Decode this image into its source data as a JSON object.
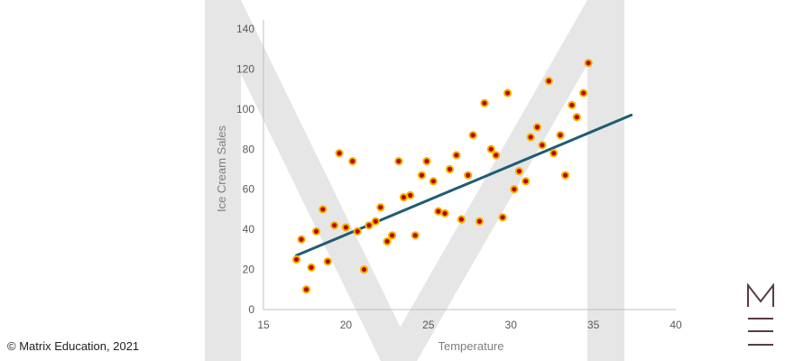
{
  "footer": {
    "copyright": "© Matrix Education, 2021"
  },
  "logo": {
    "icon": "matrix-m-logo-icon",
    "color": "#5b3a47"
  },
  "watermark": {
    "icon": "matrix-m-watermark-icon",
    "color": "#e6e6e6"
  },
  "chart_data": {
    "type": "scatter",
    "title": "",
    "xlabel": "Temperature",
    "ylabel": "Ice Cream Sales",
    "xlim": [
      15,
      40
    ],
    "ylim": [
      0,
      140
    ],
    "xticks": [
      15,
      20,
      25,
      30,
      35,
      40
    ],
    "yticks": [
      0,
      20,
      40,
      60,
      80,
      100,
      120,
      140
    ],
    "grid": false,
    "legend": "none",
    "point_color": "#c00000",
    "point_edge": "#f0b400",
    "trendline_color": "#1f5c73",
    "trendline": {
      "x": [
        17,
        37.3
      ],
      "y": [
        27,
        97
      ]
    },
    "points": [
      {
        "x": 17.0,
        "y": 25
      },
      {
        "x": 17.3,
        "y": 35
      },
      {
        "x": 17.6,
        "y": 10
      },
      {
        "x": 17.9,
        "y": 21
      },
      {
        "x": 18.2,
        "y": 39
      },
      {
        "x": 18.6,
        "y": 50
      },
      {
        "x": 18.9,
        "y": 24
      },
      {
        "x": 19.3,
        "y": 42
      },
      {
        "x": 19.6,
        "y": 78
      },
      {
        "x": 20.0,
        "y": 41
      },
      {
        "x": 20.4,
        "y": 74
      },
      {
        "x": 20.7,
        "y": 39
      },
      {
        "x": 21.1,
        "y": 20
      },
      {
        "x": 21.4,
        "y": 42
      },
      {
        "x": 21.8,
        "y": 44
      },
      {
        "x": 22.1,
        "y": 51
      },
      {
        "x": 22.5,
        "y": 34
      },
      {
        "x": 22.8,
        "y": 37
      },
      {
        "x": 23.2,
        "y": 74
      },
      {
        "x": 23.5,
        "y": 56
      },
      {
        "x": 23.9,
        "y": 57
      },
      {
        "x": 24.2,
        "y": 37
      },
      {
        "x": 24.6,
        "y": 67
      },
      {
        "x": 24.9,
        "y": 74
      },
      {
        "x": 25.3,
        "y": 64
      },
      {
        "x": 25.6,
        "y": 49
      },
      {
        "x": 26.0,
        "y": 48
      },
      {
        "x": 26.3,
        "y": 70
      },
      {
        "x": 26.7,
        "y": 77
      },
      {
        "x": 27.0,
        "y": 45
      },
      {
        "x": 27.4,
        "y": 67
      },
      {
        "x": 27.7,
        "y": 87
      },
      {
        "x": 28.1,
        "y": 44
      },
      {
        "x": 28.4,
        "y": 103
      },
      {
        "x": 28.8,
        "y": 80
      },
      {
        "x": 29.1,
        "y": 77
      },
      {
        "x": 29.5,
        "y": 46
      },
      {
        "x": 29.8,
        "y": 108
      },
      {
        "x": 30.2,
        "y": 60
      },
      {
        "x": 30.5,
        "y": 69
      },
      {
        "x": 30.9,
        "y": 64
      },
      {
        "x": 31.2,
        "y": 86
      },
      {
        "x": 31.6,
        "y": 91
      },
      {
        "x": 31.9,
        "y": 82
      },
      {
        "x": 32.3,
        "y": 114
      },
      {
        "x": 32.6,
        "y": 78
      },
      {
        "x": 33.0,
        "y": 87
      },
      {
        "x": 33.3,
        "y": 67
      },
      {
        "x": 33.7,
        "y": 102
      },
      {
        "x": 34.0,
        "y": 96
      },
      {
        "x": 34.4,
        "y": 108
      },
      {
        "x": 34.7,
        "y": 123
      }
    ]
  }
}
